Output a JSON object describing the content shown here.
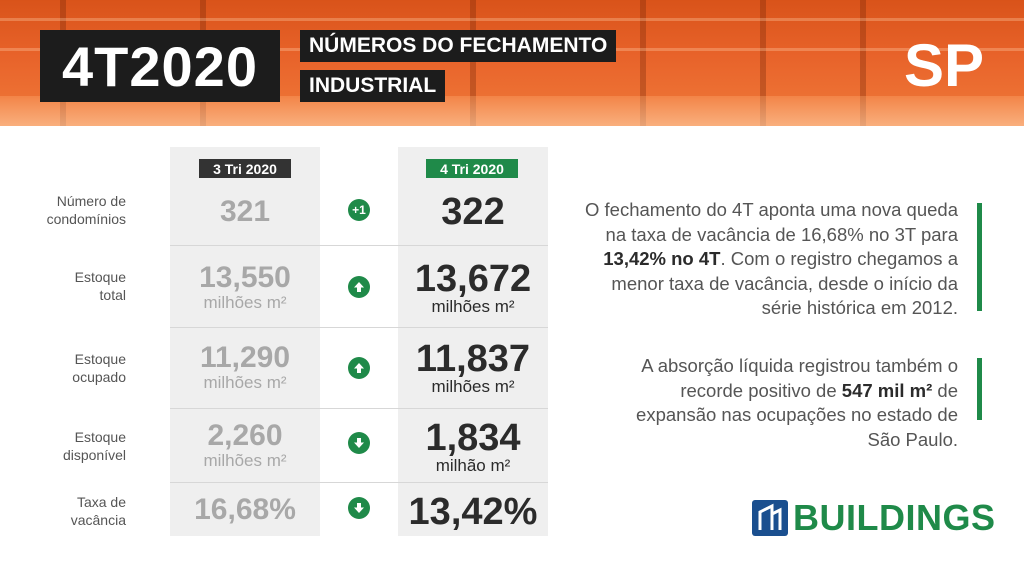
{
  "header": {
    "period": "4T2020",
    "title_line1": "NÚMEROS DO FECHAMENTO",
    "title_line2": "INDUSTRIAL",
    "state": "SP"
  },
  "columns": {
    "previous": "3 Tri 2020",
    "current": "4 Tri 2020"
  },
  "rows": [
    {
      "label_line1": "Número de",
      "label_line2": "condomínios",
      "prev_value": "321",
      "prev_unit": "",
      "change": "+1",
      "change_icon": "plus-one-badge",
      "curr_value": "322",
      "curr_unit": ""
    },
    {
      "label_line1": "Estoque",
      "label_line2": "total",
      "prev_value": "13,550",
      "prev_unit": "milhões m²",
      "change": "",
      "change_icon": "arrow-up-icon",
      "curr_value": "13,672",
      "curr_unit": "milhões m²"
    },
    {
      "label_line1": "Estoque",
      "label_line2": "ocupado",
      "prev_value": "11,290",
      "prev_unit": "milhões m²",
      "change": "",
      "change_icon": "arrow-up-icon",
      "curr_value": "11,837",
      "curr_unit": "milhões m²"
    },
    {
      "label_line1": "Estoque",
      "label_line2": "disponível",
      "prev_value": "2,260",
      "prev_unit": "milhões m²",
      "change": "",
      "change_icon": "arrow-down-icon",
      "curr_value": "1,834",
      "curr_unit": "milhão m²"
    },
    {
      "label_line1": "Taxa de",
      "label_line2": "vacância",
      "prev_value": "16,68%",
      "prev_unit": "",
      "change": "",
      "change_icon": "arrow-down-icon",
      "curr_value": "13,42%",
      "curr_unit": ""
    }
  ],
  "commentary": [
    {
      "line1": "O fechamento do 4T aponta uma nova queda",
      "line2": "na taxa de vacância de 16,68% no 3T para",
      "line3_bold": "13,42% no 4T",
      "line3_rest": ". Com o registro chegamos a",
      "line4": "menor taxa de vacância, desde o início da",
      "line5": "série histórica em 2012."
    },
    {
      "line1": "A absorção líquida registrou também o",
      "line2_pre": "recorde positivo de ",
      "line2_bold": "547 mil m²",
      "line2_post": " de",
      "line3": "expansão nas ocupações no estado de",
      "line4": "São Paulo."
    }
  ],
  "brand": {
    "name": "BUILDINGS",
    "color": "#1f8a49"
  },
  "colors": {
    "accent": "#1f8a49",
    "header": "#e8632a",
    "dark": "#1c1c1c"
  }
}
